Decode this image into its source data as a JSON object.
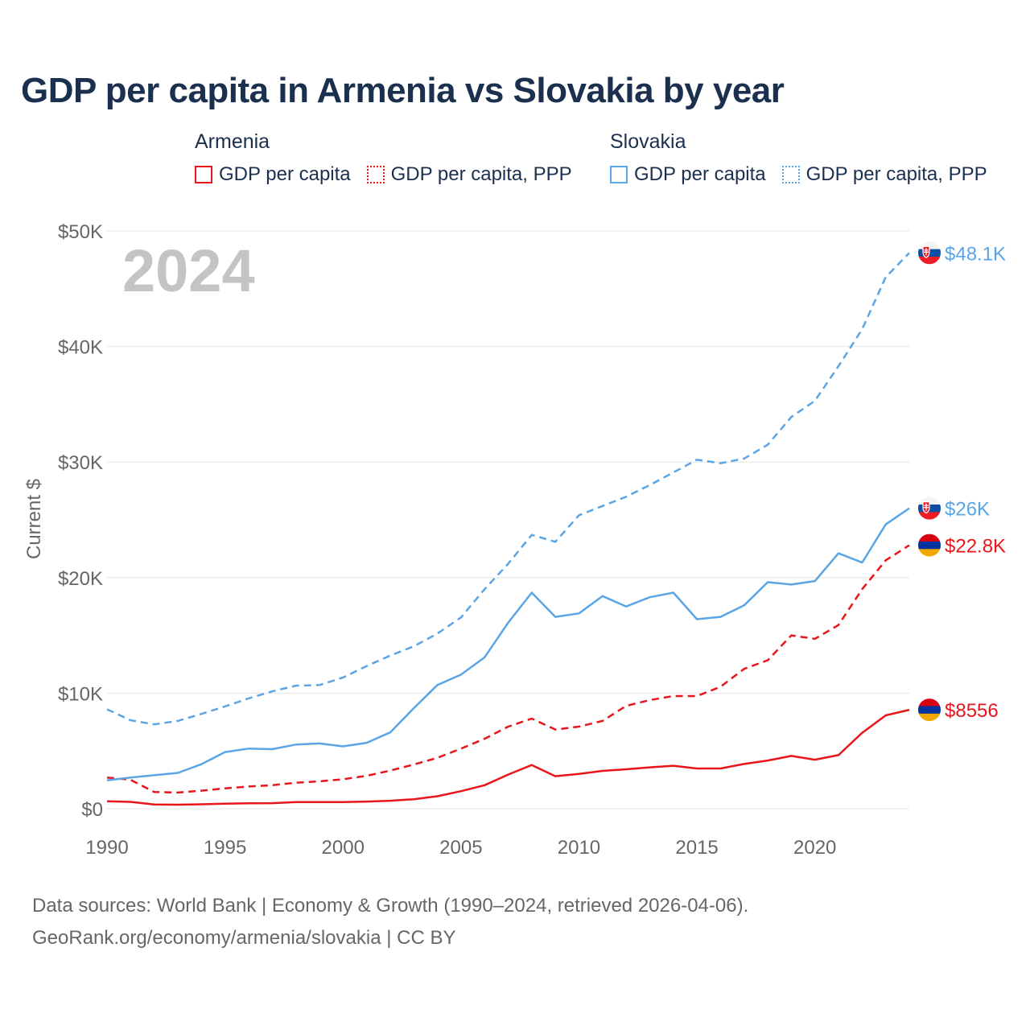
{
  "title": "GDP per capita in Armenia vs Slovakia by year",
  "legend": {
    "groups": [
      {
        "country": "Armenia",
        "items": [
          {
            "label": "GDP per capita",
            "style": "solid",
            "color": "#e8151b"
          },
          {
            "label": "GDP per capita, PPP",
            "style": "dotted",
            "color": "#e8151b"
          }
        ]
      },
      {
        "country": "Slovakia",
        "items": [
          {
            "label": "GDP per capita",
            "style": "solid",
            "color": "#5aa5e6"
          },
          {
            "label": "GDP per capita, PPP",
            "style": "dotted",
            "color": "#5aa5e6"
          }
        ]
      }
    ]
  },
  "year_watermark": "2024",
  "source": {
    "line1": "Data sources: World Bank | Economy & Growth (1990–2024, retrieved 2026-04-06).",
    "line2": "GeoRank.org/economy/armenia/slovakia | CC BY"
  },
  "chart_data": {
    "type": "line",
    "title": "GDP per capita in Armenia vs Slovakia by year",
    "xlabel": "",
    "ylabel": "Current $",
    "xlim": [
      1990,
      2024
    ],
    "ylim": [
      0,
      50000
    ],
    "x_ticks": [
      "1990",
      "1995",
      "2000",
      "2005",
      "2010",
      "2015",
      "2020"
    ],
    "x_tick_values": [
      1990,
      1995,
      2000,
      2005,
      2010,
      2015,
      2020
    ],
    "y_ticks": [
      "$0",
      "$10K",
      "$20K",
      "$30K",
      "$40K",
      "$50K"
    ],
    "y_tick_values": [
      0,
      10000,
      20000,
      30000,
      40000,
      50000
    ],
    "grid": true,
    "x": [
      1990,
      1991,
      1992,
      1993,
      1994,
      1995,
      1996,
      1997,
      1998,
      1999,
      2000,
      2001,
      2002,
      2003,
      2004,
      2005,
      2006,
      2007,
      2008,
      2009,
      2010,
      2011,
      2012,
      2013,
      2014,
      2015,
      2016,
      2017,
      2018,
      2019,
      2020,
      2021,
      2022,
      2023,
      2024
    ],
    "series": [
      {
        "name": "Armenia GDP per capita",
        "country": "Armenia",
        "color": "#e8151b",
        "dash": "solid",
        "end_label": "$8556",
        "flag": "armenia",
        "values": [
          640,
          590,
          360,
          350,
          380,
          440,
          470,
          480,
          570,
          570,
          570,
          620,
          690,
          820,
          1080,
          1520,
          2030,
          2950,
          3780,
          2810,
          3010,
          3270,
          3410,
          3580,
          3720,
          3480,
          3480,
          3870,
          4170,
          4570,
          4240,
          4640,
          6570,
          8080,
          8556
        ]
      },
      {
        "name": "Armenia GDP per capita, PPP",
        "country": "Armenia",
        "color": "#e8151b",
        "dash": "dashed",
        "end_label": "$22.8K",
        "flag": "armenia",
        "values": [
          2700,
          2500,
          1450,
          1400,
          1560,
          1760,
          1920,
          2030,
          2250,
          2370,
          2550,
          2850,
          3300,
          3820,
          4400,
          5200,
          6050,
          7100,
          7800,
          6850,
          7100,
          7600,
          8900,
          9400,
          9750,
          9750,
          10550,
          12100,
          12850,
          15000,
          14700,
          15900,
          19000,
          21500,
          22800
        ]
      },
      {
        "name": "Slovakia GDP per capita",
        "country": "Slovakia",
        "color": "#5aa5e6",
        "dash": "solid",
        "end_label": "$26K",
        "flag": "slovakia",
        "values": [
          2450,
          2700,
          2900,
          3100,
          3850,
          4900,
          5200,
          5150,
          5550,
          5650,
          5400,
          5700,
          6600,
          8700,
          10700,
          11600,
          13100,
          16100,
          18700,
          16600,
          16900,
          18400,
          17500,
          18300,
          18700,
          16400,
          16600,
          17600,
          19600,
          19400,
          19700,
          22100,
          21300,
          24600,
          26000
        ]
      },
      {
        "name": "Slovakia GDP per capita, PPP",
        "country": "Slovakia",
        "color": "#5aa5e6",
        "dash": "dashed",
        "end_label": "$48.1K",
        "flag": "slovakia",
        "values": [
          8600,
          7650,
          7300,
          7600,
          8200,
          8850,
          9550,
          10150,
          10650,
          10700,
          11350,
          12350,
          13250,
          14050,
          15150,
          16550,
          19000,
          21200,
          23700,
          23100,
          25400,
          26200,
          27000,
          28000,
          29100,
          30200,
          29900,
          30300,
          31500,
          33900,
          35300,
          38300,
          41500,
          46000,
          48100
        ]
      }
    ]
  }
}
